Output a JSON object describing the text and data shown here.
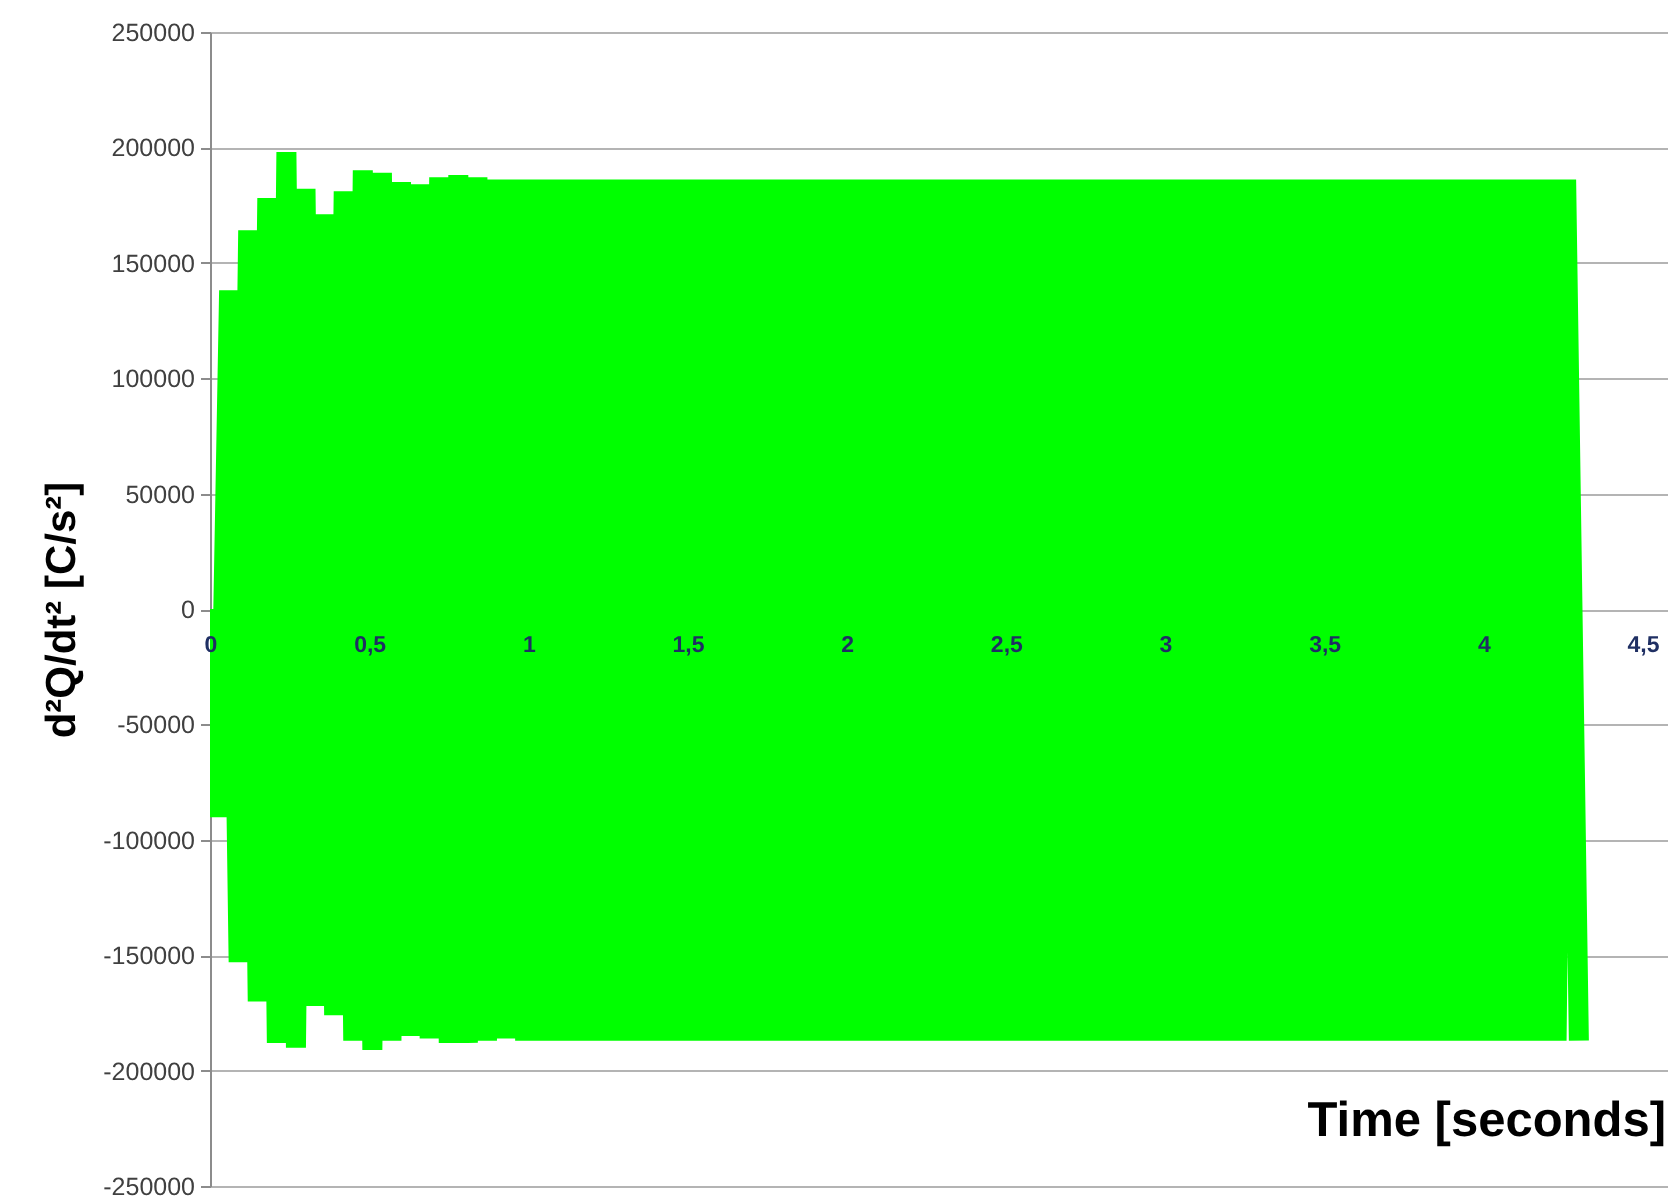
{
  "chart_data": {
    "type": "line",
    "xlabel": "Time [seconds]",
    "ylabel": "d²Q/dt² [C/s²]",
    "xlim": [
      0,
      4.58
    ],
    "xticks": [
      0,
      {
        "value": 0.5,
        "label": "0,5"
      },
      1,
      {
        "value": 1.5,
        "label": "1,5"
      },
      2,
      {
        "value": 2.5,
        "label": "2,5"
      },
      3,
      {
        "value": 3.5,
        "label": "3,5"
      },
      4,
      {
        "value": 4.5,
        "label": "4,5"
      }
    ],
    "ylim": [
      -250000,
      250000
    ],
    "yticks": [
      -250000,
      -200000,
      -150000,
      -100000,
      -50000,
      0,
      50000,
      100000,
      150000,
      200000,
      250000
    ],
    "grid": "y",
    "marker": "none",
    "line_style": "solid",
    "series": [
      {
        "color": "#00ff00",
        "x": [
          0,
          0.03,
          0.06,
          0.09,
          0.12,
          0.15,
          0.18,
          0.21,
          0.24,
          0.27,
          0.3,
          0.33,
          0.36,
          0.39,
          0.42,
          0.45,
          0.48,
          0.51,
          0.54,
          0.57,
          0.6,
          0.63,
          0.66,
          0.69,
          0.72,
          0.75,
          0.78,
          0.81,
          0.84,
          0.87,
          0.9,
          0.93,
          0.96,
          0.99,
          1.02,
          1.05,
          1.08,
          1.11,
          1.14,
          1.17,
          1.2,
          1.23,
          1.26,
          1.29,
          1.32,
          1.35,
          1.38,
          1.41,
          1.44,
          1.47,
          1.5,
          1.53,
          1.56,
          1.59,
          1.62,
          1.65,
          1.68,
          1.71,
          1.74,
          1.77,
          1.8,
          1.83,
          1.86,
          1.89,
          1.92,
          1.95,
          1.98,
          2.01,
          2.04,
          2.07,
          2.1,
          2.13,
          2.16,
          2.19,
          2.22,
          2.25,
          2.28,
          2.31,
          2.34,
          2.37,
          2.4,
          2.43,
          2.46,
          2.49,
          2.52,
          2.55,
          2.58,
          2.61,
          2.64,
          2.67,
          2.7,
          2.73,
          2.76,
          2.79,
          2.82,
          2.85,
          2.88,
          2.91,
          2.94,
          2.97,
          3,
          3.03,
          3.06,
          3.09,
          3.12,
          3.15,
          3.18,
          3.21,
          3.24,
          3.27,
          3.3,
          3.33,
          3.36,
          3.39,
          3.42,
          3.45,
          3.48,
          3.51,
          3.54,
          3.57,
          3.6,
          3.63,
          3.66,
          3.69,
          3.72,
          3.75,
          3.78,
          3.81,
          3.84,
          3.87,
          3.9,
          3.93,
          3.96,
          3.99,
          4.02,
          4.05,
          4.08,
          4.11,
          4.14,
          4.17,
          4.2,
          4.23,
          4.26,
          4.3
        ],
        "values": [
          0,
          -90000,
          138000,
          -153000,
          164000,
          -170000,
          178000,
          -188000,
          198000,
          -190000,
          182000,
          -172000,
          171000,
          -176000,
          181000,
          -187000,
          190000,
          -191000,
          189000,
          -187000,
          185000,
          -185000,
          184000,
          -186000,
          187000,
          -188000,
          188000,
          -188000,
          187000,
          -187000,
          186000,
          -186000,
          186000,
          -187000,
          186000,
          -187000,
          186000,
          -187000,
          186000,
          -187000,
          186000,
          -187000,
          186000,
          -187000,
          186000,
          -187000,
          186000,
          -187000,
          186000,
          -187000,
          186000,
          -187000,
          186000,
          -187000,
          186000,
          -187000,
          186000,
          -187000,
          186000,
          -187000,
          186000,
          -187000,
          186000,
          -187000,
          186000,
          -187000,
          186000,
          -187000,
          186000,
          -187000,
          186000,
          -187000,
          186000,
          -187000,
          186000,
          -187000,
          186000,
          -187000,
          186000,
          -187000,
          186000,
          -187000,
          186000,
          -187000,
          186000,
          -187000,
          186000,
          -187000,
          186000,
          -187000,
          186000,
          -187000,
          186000,
          -187000,
          186000,
          -187000,
          186000,
          -187000,
          186000,
          -187000,
          186000,
          -187000,
          186000,
          -187000,
          186000,
          -187000,
          186000,
          -187000,
          186000,
          -187000,
          186000,
          -187000,
          186000,
          -187000,
          186000,
          -187000,
          186000,
          -187000,
          186000,
          -187000,
          186000,
          -187000,
          186000,
          -187000,
          186000,
          -187000,
          186000,
          -187000,
          186000,
          -187000,
          186000,
          -187000,
          186000,
          -187000,
          186000,
          -187000,
          186000,
          -187000,
          186000,
          -187000,
          186000,
          -187000,
          186000,
          -187000
        ]
      }
    ]
  }
}
